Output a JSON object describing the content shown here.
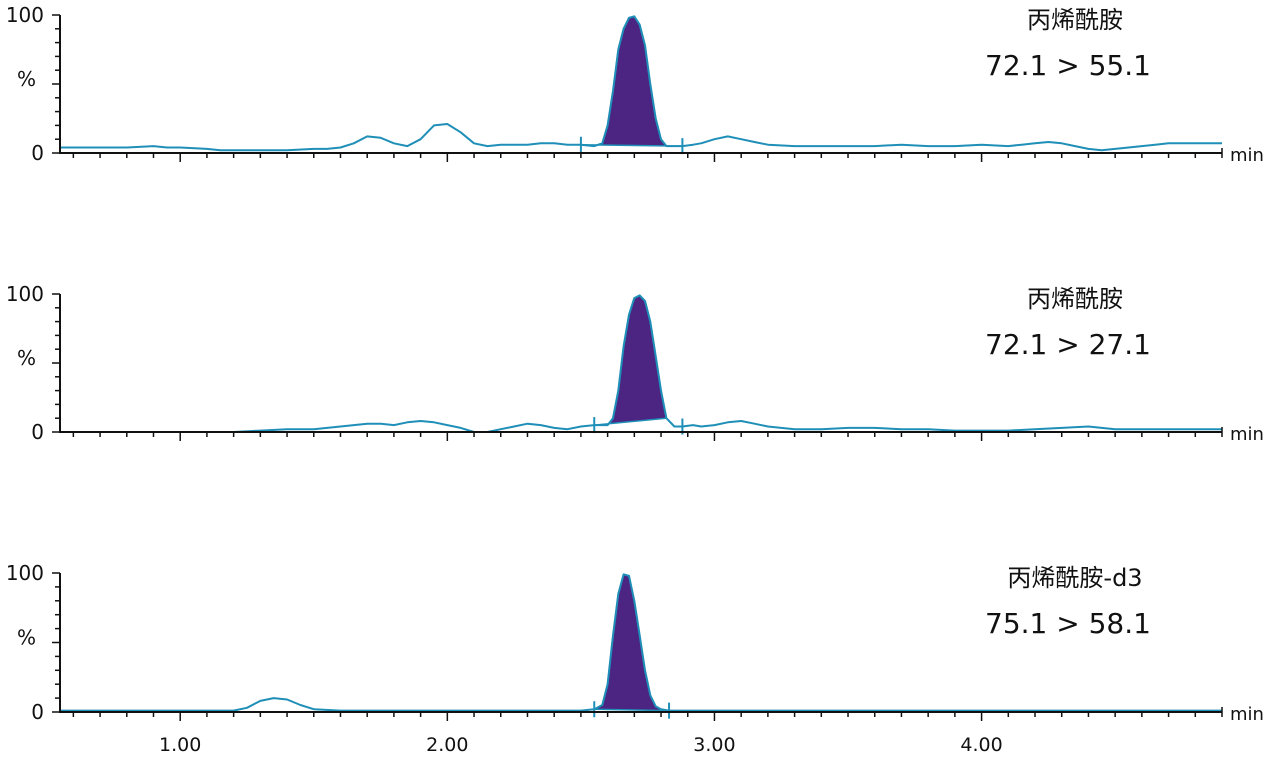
{
  "figure": {
    "x_tick_labels": [
      "1.00",
      "2.00",
      "3.00",
      "4.00"
    ],
    "colors": {
      "trace": "#1f8fb8",
      "peak_fill": "#4b2581",
      "axis": "#111111"
    }
  },
  "chart_data": [
    {
      "type": "line",
      "title": "丙烯酰胺",
      "subtitle": "72.1 > 55.1",
      "x_unit": "min",
      "y_tick_labels": [
        "100",
        "%",
        "0"
      ],
      "xlim": [
        0.55,
        4.9
      ],
      "ylim": [
        0,
        100
      ],
      "integration_marks": [
        2.5,
        2.88
      ],
      "peak_fill_range": [
        2.5,
        2.88
      ],
      "series": [
        {
          "x": [
            0.55,
            0.8,
            0.9,
            0.95,
            1.0,
            1.1,
            1.15,
            1.2,
            1.3,
            1.4,
            1.5,
            1.55,
            1.6,
            1.65,
            1.7,
            1.75,
            1.8,
            1.85,
            1.9,
            1.95,
            2.0,
            2.05,
            2.1,
            2.15,
            2.2,
            2.25,
            2.3,
            2.35,
            2.4,
            2.45,
            2.5,
            2.55,
            2.58,
            2.6,
            2.62,
            2.64,
            2.66,
            2.68,
            2.7,
            2.72,
            2.74,
            2.76,
            2.78,
            2.8,
            2.82,
            2.85,
            2.88,
            2.92,
            2.95,
            3.0,
            3.05,
            3.1,
            3.15,
            3.2,
            3.3,
            3.4,
            3.5,
            3.6,
            3.7,
            3.8,
            3.9,
            4.0,
            4.1,
            4.15,
            4.2,
            4.25,
            4.3,
            4.35,
            4.4,
            4.45,
            4.5,
            4.55,
            4.6,
            4.65,
            4.7,
            4.8,
            4.9
          ],
          "y": [
            4,
            4,
            5,
            4,
            4,
            3,
            2,
            2,
            2,
            2,
            3,
            3,
            4,
            7,
            12,
            11,
            7,
            5,
            10,
            20,
            21,
            15,
            7,
            5,
            6,
            6,
            6,
            7,
            7,
            6,
            6,
            5,
            7,
            20,
            45,
            75,
            90,
            98,
            99,
            93,
            78,
            50,
            25,
            10,
            5,
            5,
            5,
            6,
            7,
            10,
            12,
            10,
            8,
            6,
            5,
            5,
            5,
            5,
            6,
            5,
            5,
            6,
            5,
            6,
            7,
            8,
            7,
            5,
            3,
            2,
            3,
            4,
            5,
            6,
            7,
            7,
            7
          ]
        }
      ]
    },
    {
      "type": "line",
      "title": "丙烯酰胺",
      "subtitle": "72.1 > 27.1",
      "x_unit": "min",
      "y_tick_labels": [
        "100",
        "%",
        "0"
      ],
      "xlim": [
        0.55,
        4.9
      ],
      "ylim": [
        0,
        100
      ],
      "integration_marks": [
        2.55,
        2.88
      ],
      "peak_fill_range": [
        2.55,
        2.82
      ],
      "series": [
        {
          "x": [
            0.55,
            0.9,
            1.0,
            1.1,
            1.2,
            1.3,
            1.4,
            1.45,
            1.5,
            1.55,
            1.6,
            1.65,
            1.7,
            1.75,
            1.8,
            1.85,
            1.9,
            1.95,
            2.0,
            2.05,
            2.1,
            2.15,
            2.2,
            2.25,
            2.3,
            2.35,
            2.4,
            2.45,
            2.5,
            2.55,
            2.6,
            2.62,
            2.64,
            2.66,
            2.68,
            2.7,
            2.72,
            2.74,
            2.76,
            2.78,
            2.8,
            2.82,
            2.85,
            2.88,
            2.92,
            2.95,
            3.0,
            3.05,
            3.1,
            3.15,
            3.2,
            3.3,
            3.4,
            3.5,
            3.6,
            3.7,
            3.8,
            3.9,
            4.0,
            4.1,
            4.2,
            4.3,
            4.4,
            4.45,
            4.5,
            4.6,
            4.7,
            4.8,
            4.9
          ],
          "y": [
            0,
            0,
            0,
            0,
            0,
            1,
            2,
            2,
            2,
            3,
            4,
            5,
            6,
            6,
            5,
            7,
            8,
            7,
            5,
            3,
            0,
            0,
            2,
            4,
            6,
            5,
            3,
            2,
            4,
            5,
            5,
            10,
            30,
            62,
            85,
            97,
            99,
            95,
            80,
            55,
            30,
            10,
            4,
            4,
            5,
            4,
            5,
            7,
            8,
            6,
            4,
            2,
            2,
            3,
            3,
            2,
            2,
            1,
            1,
            1,
            2,
            3,
            4,
            3,
            2,
            2,
            2,
            2,
            2
          ]
        }
      ]
    },
    {
      "type": "line",
      "title": "丙烯酰胺-d3",
      "subtitle": "75.1 > 58.1",
      "x_unit": "min",
      "y_tick_labels": [
        "100",
        "%",
        "0"
      ],
      "xlim": [
        0.55,
        4.9
      ],
      "ylim": [
        0,
        100
      ],
      "integration_marks": [
        2.55,
        2.83
      ],
      "peak_fill_range": [
        2.55,
        2.83
      ],
      "series": [
        {
          "x": [
            0.55,
            1.0,
            1.2,
            1.25,
            1.3,
            1.35,
            1.4,
            1.45,
            1.5,
            1.6,
            2.0,
            2.5,
            2.55,
            2.58,
            2.6,
            2.62,
            2.64,
            2.66,
            2.68,
            2.7,
            2.72,
            2.74,
            2.76,
            2.78,
            2.8,
            2.83,
            2.9,
            3.5,
            4.0,
            4.5,
            4.9
          ],
          "y": [
            1,
            1,
            1,
            3,
            8,
            10,
            9,
            5,
            2,
            1,
            1,
            1,
            2,
            5,
            20,
            55,
            85,
            99,
            98,
            80,
            55,
            30,
            12,
            4,
            2,
            1,
            1,
            1,
            1,
            1,
            1
          ]
        }
      ]
    }
  ]
}
